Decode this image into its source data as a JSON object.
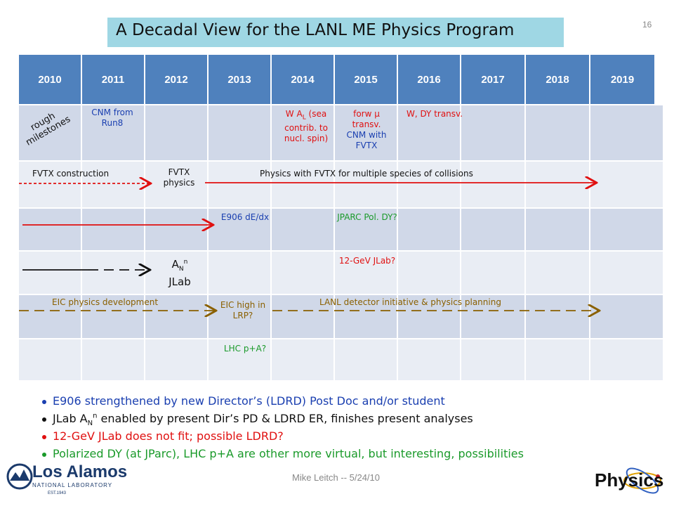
{
  "title": "A Decadal View for the LANL ME Physics Program",
  "slide_number": "16",
  "years": [
    "2010",
    "2011",
    "2012",
    "2013",
    "2014",
    "2015",
    "2016",
    "2017",
    "2018",
    "2019"
  ],
  "cells": {
    "rough_milestones": "rough milestones",
    "cnm_run8": "CNM from Run8",
    "w_al_1": "W A",
    "w_al_sub": "L",
    "w_al_2": " (sea contrib. to nucl. spin)",
    "forw_1": "forw",
    "forw_mu": "μ",
    "forw_2": "transv.",
    "forw_3": "CNM with FVTX",
    "wdy": "W, DY transv.",
    "fvtx_construction": "FVTX construction",
    "fvtx_physics": "FVTX physics",
    "physics_fvtx": "Physics with FVTX for multiple species of collisions",
    "e906": "E906 dE/dx",
    "jparc": "JPARC Pol. DY?",
    "an_a": "A",
    "an_sub": "N",
    "an_sup": "n",
    "an_jlab": "JLab",
    "jlab12": "12-GeV JLab?",
    "eic_dev": "EIC physics development",
    "eic_high": "EIC high in LRP?",
    "lanl_detector": "LANL detector initiative & physics planning",
    "lhc": "LHC p+A?"
  },
  "bullets": [
    {
      "text": "E906 strengthened by new Director’s (LDRD) Post Doc and/or student",
      "color": "#1a3fb0"
    },
    {
      "pre": "JLab A",
      "sub": "N",
      "sup": "n",
      "post": " enabled by present Dir’s PD & LDRD ER, finishes present analyses",
      "color": "#111111"
    },
    {
      "text": "12-GeV JLab does not fit; possible LDRD?",
      "color": "#e01010"
    },
    {
      "text": "Polarized DY (at JParc), LHC p+A are other more virtual, but interesting, possibilities",
      "color": "#1a9a2a"
    }
  ],
  "footer": "Mike Leitch -- 5/24/10",
  "logo_left": {
    "line1": "Los Alamos",
    "line2": "NATIONAL LABORATORY",
    "line3": "EST.1943"
  },
  "logo_right": {
    "text": "Physics"
  },
  "colors": {
    "title_bg": "#9fd7e4",
    "header_bg": "#4f81bd",
    "row_dark": "#d0d8e8",
    "row_light": "#e9edf4"
  }
}
